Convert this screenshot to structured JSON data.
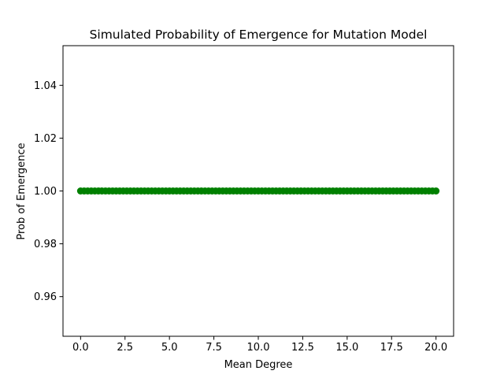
{
  "chart_data": {
    "type": "scatter",
    "title": "Simulated Probability of Emergence for Mutation Model",
    "xlabel": "Mean Degree",
    "ylabel": "Prob of Emergence",
    "xlim": [
      -0.99,
      20.99
    ],
    "ylim": [
      0.945,
      1.055
    ],
    "xticks": [
      0.0,
      2.5,
      5.0,
      7.5,
      10.0,
      12.5,
      15.0,
      17.5,
      20.0
    ],
    "xtick_labels": [
      "0.0",
      "2.5",
      "5.0",
      "7.5",
      "10.0",
      "12.5",
      "15.0",
      "17.5",
      "20.0"
    ],
    "yticks": [
      0.96,
      0.98,
      1.0,
      1.02,
      1.04
    ],
    "ytick_labels": [
      "0.96",
      "0.98",
      "1.00",
      "1.02",
      "1.04"
    ],
    "grid": false,
    "legend": "none",
    "marker_color": "#008000",
    "series": [
      {
        "x_start": 0.0,
        "x_end": 20.0,
        "x_step": 0.2,
        "y_constant": 1.0
      }
    ]
  }
}
